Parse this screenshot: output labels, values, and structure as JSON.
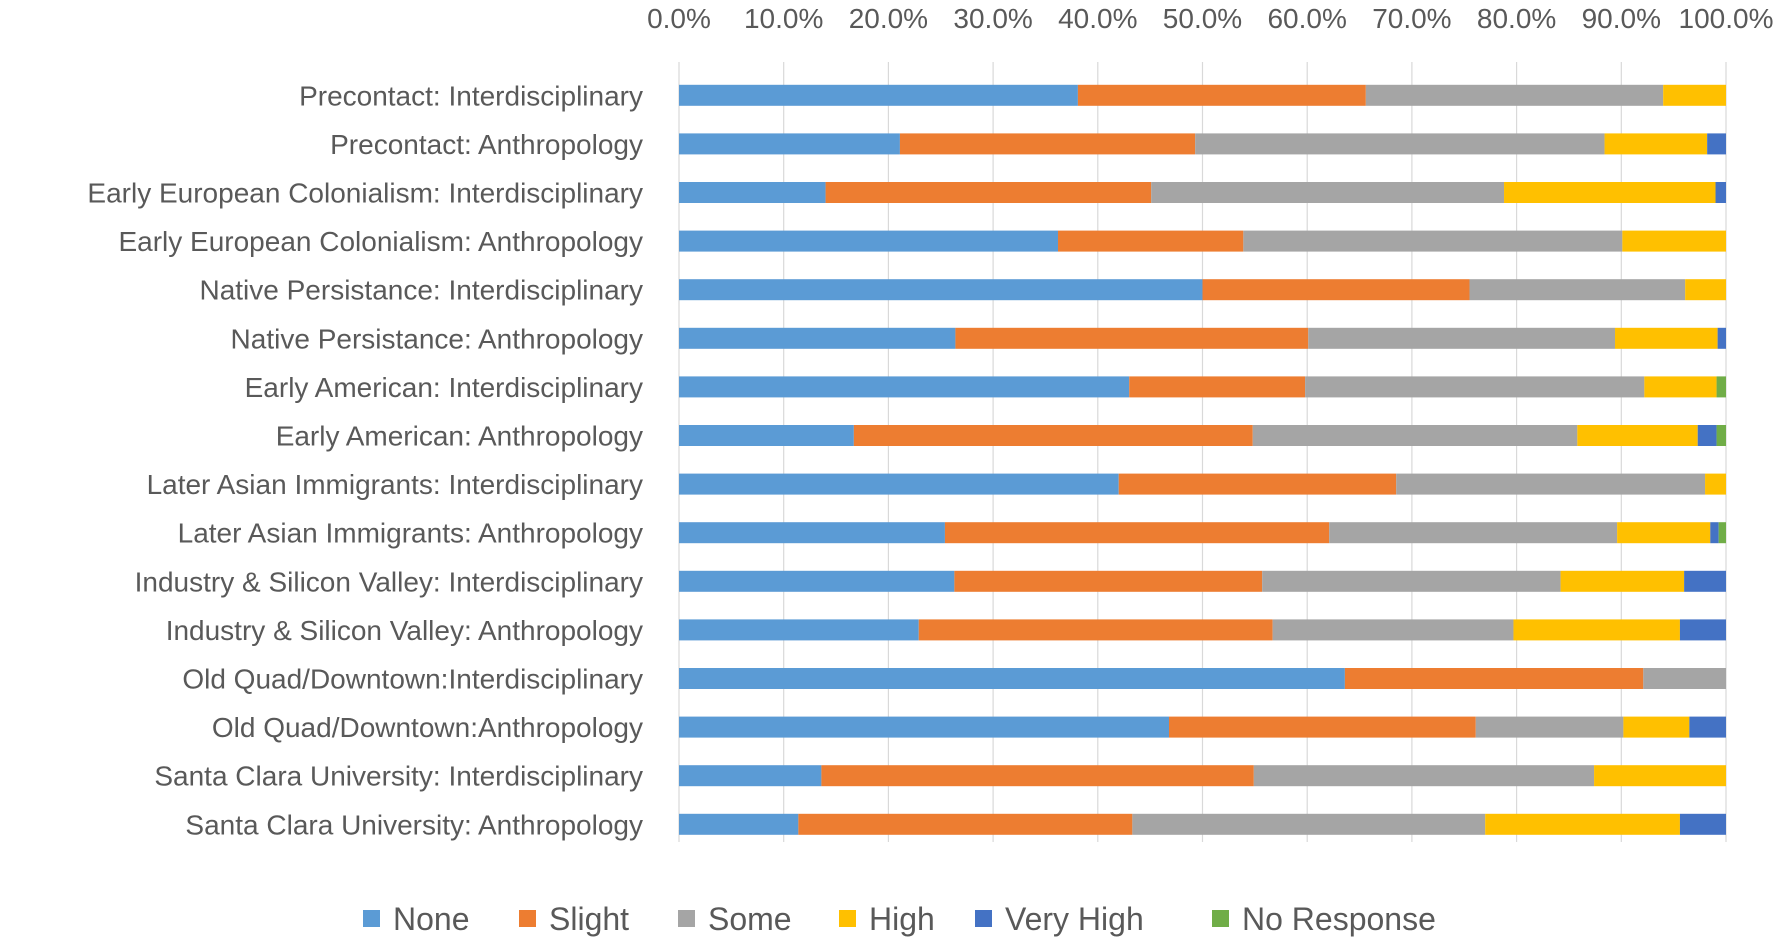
{
  "chart_data": {
    "type": "bar",
    "orientation": "horizontal",
    "stacked": true,
    "percent_stacked": true,
    "x_axis_position": "top",
    "xlim": [
      0,
      100
    ],
    "x_ticks": [
      "0.0%",
      "10.0%",
      "20.0%",
      "30.0%",
      "40.0%",
      "50.0%",
      "60.0%",
      "70.0%",
      "80.0%",
      "90.0%",
      "100.0%"
    ],
    "grid": true,
    "legend_position": "bottom",
    "categories": [
      "Precontact: Interdisciplinary",
      "Precontact: Anthropology",
      "Early European Colonialism: Interdisciplinary",
      "Early European Colonialism: Anthropology",
      "Native Persistance: Interdisciplinary",
      "Native Persistance: Anthropology",
      "Early American: Interdisciplinary",
      "Early American: Anthropology",
      "Later Asian Immigrants: Interdisciplinary",
      "Later Asian Immigrants: Anthropology",
      "Industry & Silicon Valley: Interdisciplinary",
      "Industry & Silicon Valley: Anthropology",
      "Old Quad/Downtown:Interdisciplinary",
      "Old Quad/Downtown:Anthropology",
      "Santa Clara University: Interdisciplinary",
      "Santa Clara University: Anthropology"
    ],
    "series": [
      {
        "name": "None",
        "color": "#5B9BD5",
        "values": [
          38.1,
          21.1,
          14.0,
          36.2,
          50.0,
          26.4,
          43.0,
          16.7,
          42.0,
          25.4,
          26.3,
          22.9,
          63.6,
          46.8,
          13.6,
          11.4
        ]
      },
      {
        "name": "Slight",
        "color": "#ED7D31",
        "values": [
          27.5,
          28.2,
          31.1,
          17.7,
          25.5,
          33.7,
          16.8,
          38.1,
          26.5,
          36.7,
          29.4,
          33.8,
          28.5,
          29.3,
          41.3,
          31.9
        ]
      },
      {
        "name": "Some",
        "color": "#A5A5A5",
        "values": [
          28.4,
          39.1,
          33.7,
          36.2,
          20.6,
          29.3,
          32.4,
          31.0,
          29.5,
          27.5,
          28.5,
          23.0,
          7.9,
          14.1,
          32.5,
          33.7
        ]
      },
      {
        "name": "High",
        "color": "#FFC000",
        "values": [
          6.0,
          9.8,
          20.2,
          9.9,
          3.9,
          9.8,
          6.9,
          11.5,
          2.0,
          8.9,
          11.8,
          15.9,
          0.0,
          6.3,
          12.6,
          18.6
        ]
      },
      {
        "name": "Very High",
        "color": "#4472C4",
        "values": [
          0.0,
          1.8,
          1.0,
          0.0,
          0.0,
          0.8,
          0.0,
          1.8,
          0.0,
          0.8,
          4.0,
          4.4,
          0.0,
          3.5,
          0.0,
          4.4
        ]
      },
      {
        "name": "No Response",
        "color": "#70AD47",
        "values": [
          0.0,
          0.0,
          0.0,
          0.0,
          0.0,
          0.0,
          0.9,
          0.9,
          0.0,
          0.7,
          0.0,
          0.0,
          0.0,
          0.0,
          0.0,
          0.0
        ]
      }
    ]
  }
}
